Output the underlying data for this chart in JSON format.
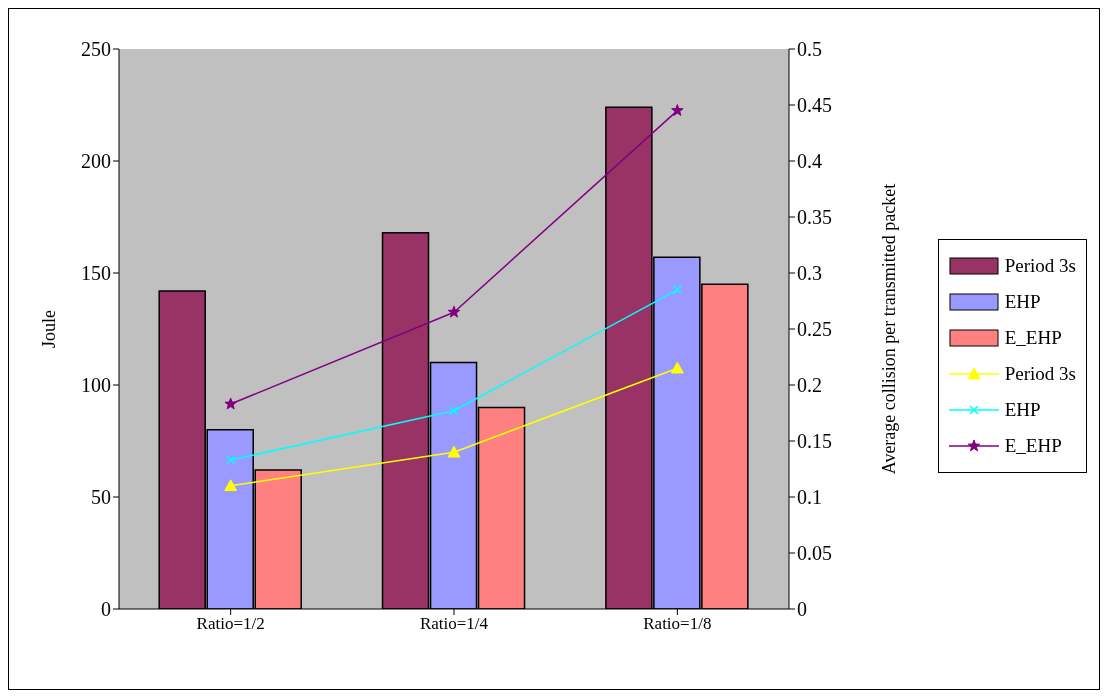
{
  "chart_data": {
    "type": "bar",
    "categories": [
      "Ratio=1/2",
      "Ratio=1/4",
      "Ratio=1/8"
    ],
    "ylabel": "Joule",
    "y2label": "Average collision per transmitted packet",
    "ylim": [
      0,
      250
    ],
    "yticks": [
      0,
      50,
      100,
      150,
      200,
      250
    ],
    "y2lim": [
      0,
      0.5
    ],
    "y2ticks": [
      0,
      0.05,
      0.1,
      0.15,
      0.2,
      0.25,
      0.3,
      0.35,
      0.4,
      0.45,
      0.5
    ],
    "grid": false,
    "legend": "right",
    "series": [
      {
        "name": "Period 3s",
        "color": "#993366",
        "values": [
          142,
          168,
          224
        ]
      },
      {
        "name": "EHP",
        "color": "#9999ff",
        "values": [
          80,
          110,
          157
        ]
      },
      {
        "name": "E_EHP",
        "color": "#ff8080",
        "values": [
          62,
          90,
          145
        ]
      },
      {
        "name": "Period 3s",
        "type": "line",
        "axis": "y2",
        "color": "#ffff00",
        "marker": "triangle",
        "values": [
          0.11,
          0.14,
          0.215
        ]
      },
      {
        "name": "EHP",
        "type": "line",
        "axis": "y2",
        "color": "#00ffff",
        "marker": "cross",
        "values": [
          0.133,
          0.177,
          0.285
        ]
      },
      {
        "name": "E_EHP",
        "type": "line",
        "axis": "y2",
        "color": "#800080",
        "marker": "star",
        "values": [
          0.183,
          0.265,
          0.445
        ]
      }
    ]
  }
}
